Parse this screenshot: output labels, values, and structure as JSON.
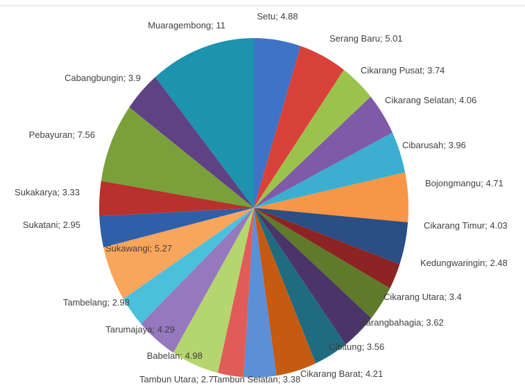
{
  "chart_data": {
    "type": "pie",
    "categories": [
      "Setu",
      "Serang Baru",
      "Cikarang Pusat",
      "Cikarang Selatan",
      "Cibarusah",
      "Bojongmangu",
      "Cikarang Timur",
      "Kedungwaringin",
      "Cikarang Utara",
      "Karangbahagia",
      "Cibitung",
      "Cikarang Barat",
      "Tambun Selatan",
      "Tambun Utara",
      "Babelan",
      "Tarumajaya",
      "Tambelang",
      "Sukawangi",
      "Sukatani",
      "Sukakarya",
      "Pebayuran",
      "Cabangbungin",
      "Muaragembong"
    ],
    "values": [
      4.88,
      5.01,
      3.74,
      4.06,
      3.96,
      4.71,
      4.03,
      2.48,
      3.4,
      3.62,
      3.56,
      4.21,
      3.38,
      2.7,
      4.98,
      4.29,
      2.98,
      5.27,
      2.95,
      3.33,
      7.56,
      3.9,
      11
    ],
    "value_labels": [
      "; 4.88",
      "; 5.01",
      "; 3.74",
      "; 4.06",
      "; 3.96",
      "; 4.71",
      "; 4.03",
      "; 2.48",
      "; 3.4",
      "; 3.62",
      "; 3.56",
      "; 4.21",
      "; 3.38",
      "; 2.7",
      "; 4.98",
      "; 4.29",
      "; 2.98",
      "; 5.27",
      "; 2.95",
      "; 3.33",
      "; 7.56",
      "; 3.9",
      "; 11"
    ],
    "colors": [
      "#3f73c6",
      "#d9423b",
      "#9bc34b",
      "#7f5aa8",
      "#3caed0",
      "#f79646",
      "#2b4e85",
      "#8b2423",
      "#5f7a2b",
      "#4b3468",
      "#1f6c80",
      "#c55a11",
      "#5b8fd6",
      "#e05c58",
      "#b5d56e",
      "#9678bf",
      "#4bc0dc",
      "#f9a55c",
      "#2f5fa8",
      "#b8312c",
      "#7aa03a",
      "#5e4284",
      "#1d93ae"
    ]
  }
}
